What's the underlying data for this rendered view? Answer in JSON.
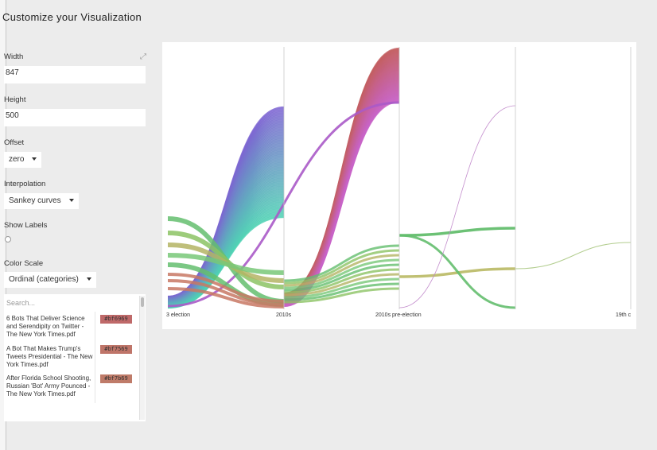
{
  "title": "Customize your Visualization",
  "controls": {
    "width_label": "Width",
    "width_value": "847",
    "height_label": "Height",
    "height_value": "500",
    "offset_label": "Offset",
    "offset_value": "zero",
    "interpolation_label": "Interpolation",
    "interpolation_value": "Sankey curves",
    "show_labels_label": "Show Labels",
    "color_scale_label": "Color Scale",
    "color_scale_value": "Ordinal (categories)"
  },
  "color_list": {
    "search_placeholder": "Search...",
    "items": [
      {
        "name": "6 Bots That Deliver Science and Serendipity on Twitter - The New York Times.pdf",
        "color": "#bf6969"
      },
      {
        "name": "A Bot That Makes Trump's Tweets Presidential - The New York Times.pdf",
        "color": "#bf7569"
      },
      {
        "name": "After Florida School Shooting, Russian 'Bot' Army Pounced - The New York Times.pdf",
        "color": "#bf7b69"
      }
    ]
  },
  "chart_data": {
    "type": "alluvial",
    "steps": [
      "3 election",
      "2010s",
      "2010s pre-election",
      "19th c"
    ]
  }
}
